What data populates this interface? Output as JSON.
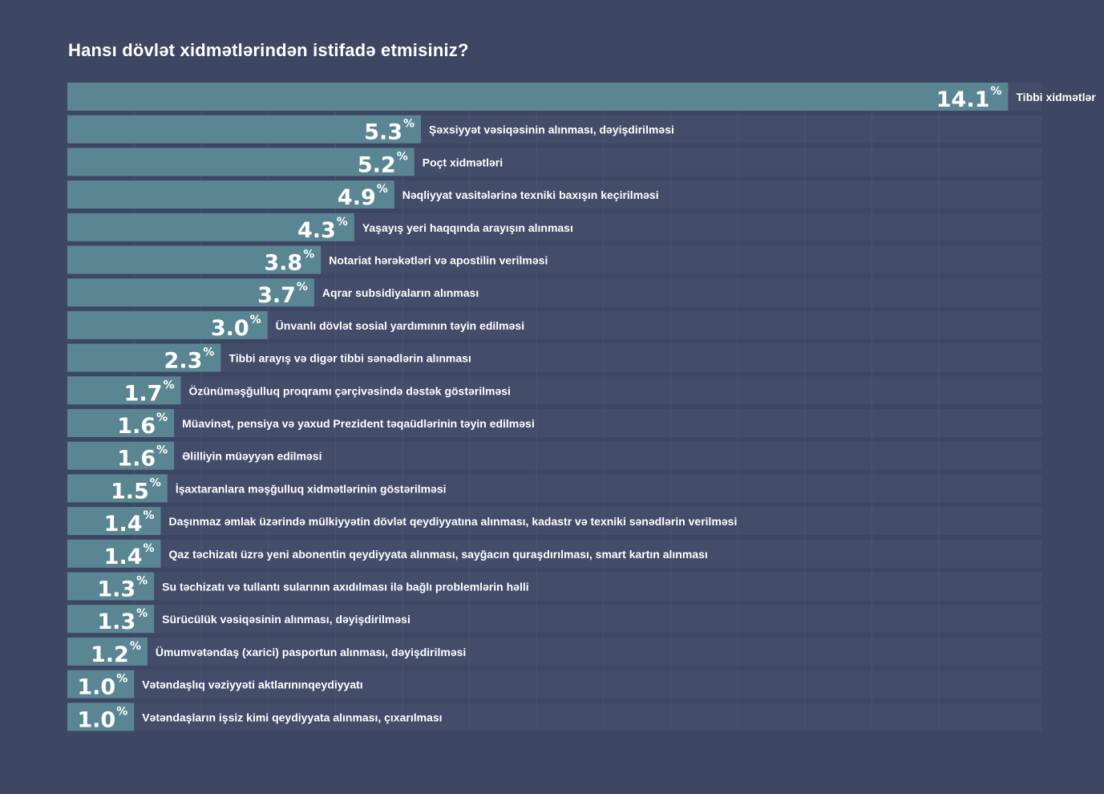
{
  "chart_data": {
    "type": "bar",
    "orientation": "horizontal",
    "title": "Hansı dövlət xidmətlərindən istifadə etmisiniz?",
    "unit_symbol": "%",
    "xlim": [
      0,
      14.6
    ],
    "grid": true,
    "colors": {
      "background": "#3d4663",
      "track": "#434d6a",
      "bar": "#5a8592",
      "grid": "#4a5370",
      "text": "#ffffff"
    },
    "categories": [
      "Tibbi xidmətlər",
      "Şəxsiyyət vəsiqəsinin alınması, dəyişdirilməsi",
      "Poçt xidmətləri",
      "Nəqliyyat vasitələrinə texniki baxışın keçirilməsi",
      "Yaşayış yeri haqqında arayışın alınması",
      "Notariat hərəkətləri və apostilin verilməsi",
      "Aqrar subsidiyaların alınması",
      "Ünvanlı dövlət sosial yardımının təyin edilməsi",
      "Tibbi arayış və digər tibbi sənədlərin alınması",
      "Özünüməşğulluq proqramı çərçivəsində dəstək göstərilməsi",
      "Müavinət, pensiya və yaxud Prezident təqaüdlərinin təyin edilməsi",
      "Əlilliyin müəyyən edilməsi",
      "İşaxtaranlara məşğulluq xidmətlərinin göstərilməsi",
      "Daşınmaz əmlak üzərində mülkiyyətin dövlət qeydiyyatına alınması, kadastr və texniki sənədlərin verilməsi",
      "Qaz təchizatı üzrə yeni abonentin qeydiyyata alınması, sayğacın quraşdırılması, smart kartın alınması",
      "Su təchizatı və tullantı sularının axıdılması ilə bağlı problemlərin həlli",
      "Sürücülük vəsiqəsinin alınması, dəyişdirilməsi",
      "Ümumvətəndaş (xarici) pasportun alınması, dəyişdirilməsi",
      "Vətəndaşlıq vəziyyəti aktlarınınqeydiyyatı",
      "Vətəndaşların işsiz kimi qeydiyyata alınması, çıxarılması"
    ],
    "values": [
      14.1,
      5.3,
      5.2,
      4.9,
      4.3,
      3.8,
      3.7,
      3.0,
      2.3,
      1.7,
      1.6,
      1.6,
      1.5,
      1.4,
      1.4,
      1.3,
      1.3,
      1.2,
      1.0,
      1.0
    ],
    "value_labels": [
      "14.1",
      "5.3",
      "5.2",
      "4.9",
      "4.3",
      "3.8",
      "3.7",
      "3.0",
      "2.3",
      "1.7",
      "1.6",
      "1.6",
      "1.5",
      "1.4",
      "1.4",
      "1.3",
      "1.3",
      "1.2",
      "1.0",
      "1.0"
    ]
  }
}
